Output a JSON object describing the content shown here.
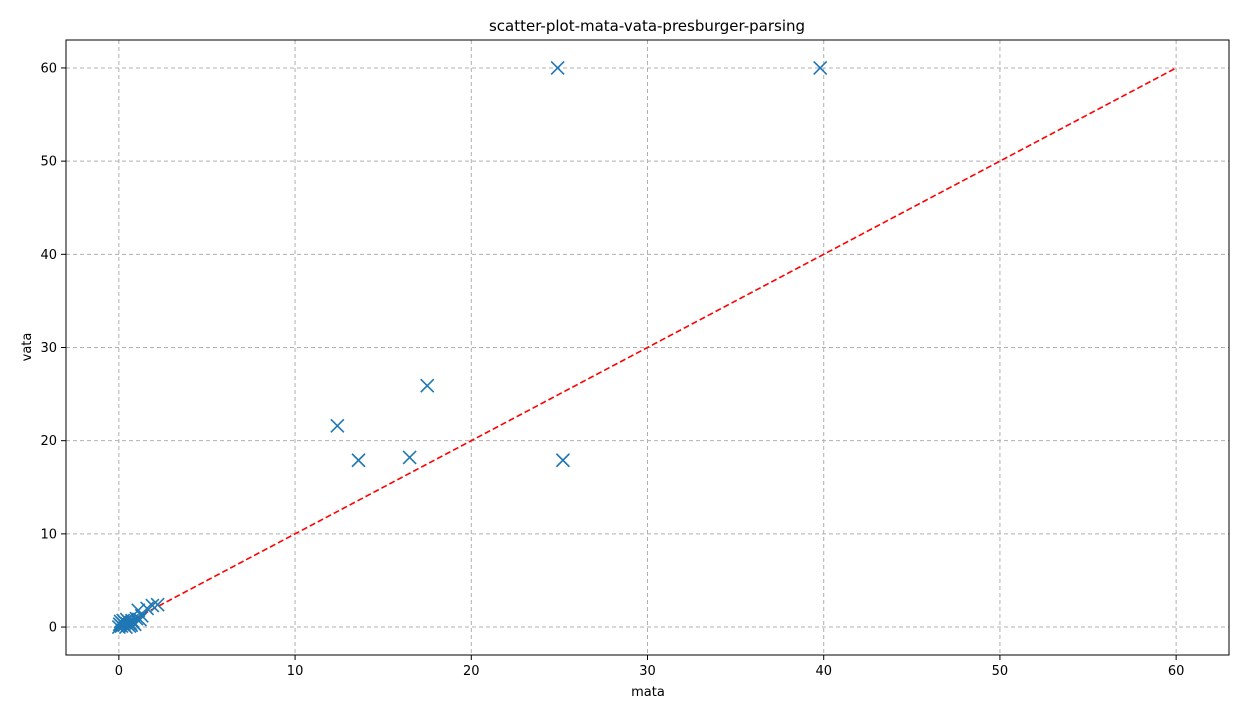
{
  "chart_data": {
    "type": "scatter",
    "title": "scatter-plot-mata-vata-presburger-parsing",
    "xlabel": "mata",
    "ylabel": "vata",
    "xlim": [
      -3,
      63
    ],
    "ylim": [
      -3,
      63
    ],
    "xticks": [
      0,
      10,
      20,
      30,
      40,
      50,
      60
    ],
    "yticks": [
      0,
      10,
      20,
      30,
      40,
      50,
      60
    ],
    "grid": true,
    "marker": "x",
    "colors": {
      "points": "#1f77b4",
      "reference_line": "#ff0000",
      "grid": "#b0b0b0"
    },
    "reference_line": {
      "x": [
        0,
        60
      ],
      "y": [
        0,
        60
      ],
      "style": "dashed"
    },
    "series": [
      {
        "points": [
          [
            24.9,
            60.0
          ],
          [
            39.8,
            60.0
          ],
          [
            17.5,
            25.9
          ],
          [
            12.4,
            21.6
          ],
          [
            13.6,
            17.9
          ],
          [
            16.5,
            18.2
          ],
          [
            25.2,
            17.9
          ],
          [
            0.0,
            0.0
          ],
          [
            0.05,
            0.3
          ],
          [
            0.1,
            0.6
          ],
          [
            0.15,
            0.1
          ],
          [
            0.2,
            0.4
          ],
          [
            0.25,
            0.7
          ],
          [
            0.3,
            0.2
          ],
          [
            0.35,
            0.5
          ],
          [
            0.4,
            0.0
          ],
          [
            0.45,
            0.8
          ],
          [
            0.5,
            0.3
          ],
          [
            0.55,
            0.6
          ],
          [
            0.6,
            0.1
          ],
          [
            0.65,
            0.4
          ],
          [
            0.7,
            0.2
          ],
          [
            0.75,
            0.7
          ],
          [
            0.8,
            0.5
          ],
          [
            0.9,
            0.3
          ],
          [
            1.0,
            0.9
          ],
          [
            1.1,
            1.8
          ],
          [
            1.2,
            0.8
          ],
          [
            1.3,
            1.2
          ],
          [
            1.6,
            2.0
          ],
          [
            1.9,
            2.3
          ],
          [
            2.2,
            2.4
          ]
        ]
      }
    ]
  }
}
